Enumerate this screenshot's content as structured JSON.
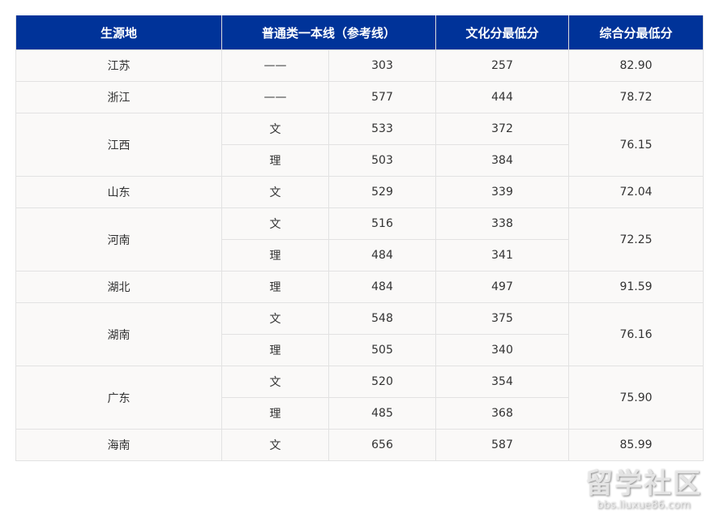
{
  "header": {
    "col1": "生源地",
    "col2": "普通类一本线（参考线）",
    "col3": "文化分最低分",
    "col4": "综合分最低分"
  },
  "colors": {
    "header_bg": "#003399",
    "cell_bg": "#faf9f8"
  },
  "rows": [
    {
      "province": "江苏",
      "items": [
        {
          "type": "——",
          "line": "303",
          "culture": "257"
        }
      ],
      "composite": "82.90"
    },
    {
      "province": "浙江",
      "items": [
        {
          "type": "——",
          "line": "577",
          "culture": "444"
        }
      ],
      "composite": "78.72"
    },
    {
      "province": "江西",
      "items": [
        {
          "type": "文",
          "line": "533",
          "culture": "372"
        },
        {
          "type": "理",
          "line": "503",
          "culture": "384"
        }
      ],
      "composite": "76.15"
    },
    {
      "province": "山东",
      "items": [
        {
          "type": "文",
          "line": "529",
          "culture": "339"
        }
      ],
      "composite": "72.04"
    },
    {
      "province": "河南",
      "items": [
        {
          "type": "文",
          "line": "516",
          "culture": "338"
        },
        {
          "type": "理",
          "line": "484",
          "culture": "341"
        }
      ],
      "composite": "72.25"
    },
    {
      "province": "湖北",
      "items": [
        {
          "type": "理",
          "line": "484",
          "culture": "497"
        }
      ],
      "composite": "91.59"
    },
    {
      "province": "湖南",
      "items": [
        {
          "type": "文",
          "line": "548",
          "culture": "375"
        },
        {
          "type": "理",
          "line": "505",
          "culture": "340"
        }
      ],
      "composite": "76.16"
    },
    {
      "province": "广东",
      "items": [
        {
          "type": "文",
          "line": "520",
          "culture": "354"
        },
        {
          "type": "理",
          "line": "485",
          "culture": "368"
        }
      ],
      "composite": "75.90"
    },
    {
      "province": "海南",
      "items": [
        {
          "type": "文",
          "line": "656",
          "culture": "587"
        }
      ],
      "composite": "85.99"
    }
  ],
  "watermark": {
    "title": "留学社区",
    "url": "bbs.liuxue86.com"
  }
}
